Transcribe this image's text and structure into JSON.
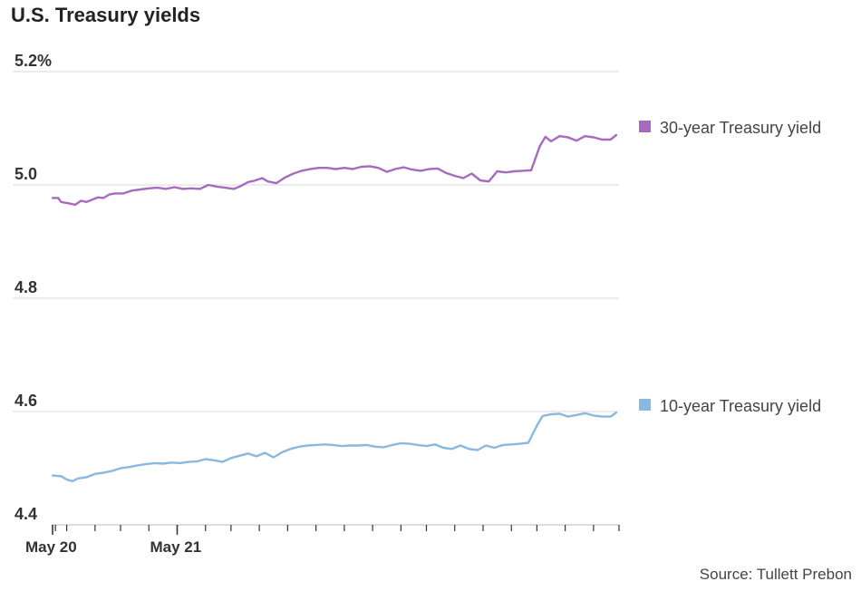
{
  "title": "U.S. Treasury yields",
  "source": "Source: Tullett Prebon",
  "colors": {
    "thirty": "#a66bbe",
    "ten": "#89b8e0",
    "grid": "#d9d9d9",
    "axis": "#333333"
  },
  "chart_data": {
    "type": "line",
    "title": "U.S. Treasury yields",
    "xlabel": "",
    "ylabel": "",
    "ylim": [
      4.4,
      5.2
    ],
    "xlim": [
      0,
      200
    ],
    "yticks": [
      {
        "value": 5.2,
        "label": "5.2%"
      },
      {
        "value": 5.0,
        "label": "5.0"
      },
      {
        "value": 4.8,
        "label": "4.8"
      },
      {
        "value": 4.6,
        "label": "4.6"
      },
      {
        "value": 4.4,
        "label": "4.4"
      }
    ],
    "xticks": [
      {
        "x": 0,
        "label": "May 20"
      },
      {
        "x": 44,
        "label": "May 21"
      }
    ],
    "minor_ticks": [
      0,
      1,
      5,
      15,
      24,
      34,
      44,
      54,
      63,
      73,
      83,
      93,
      103,
      113,
      123,
      132,
      142,
      152,
      162,
      171,
      181,
      191,
      200
    ],
    "series": [
      {
        "name": "30-year Treasury yield",
        "color_key": "thirty",
        "points": [
          [
            0,
            4.977
          ],
          [
            2,
            4.977
          ],
          [
            3,
            4.97
          ],
          [
            6,
            4.967
          ],
          [
            8,
            4.965
          ],
          [
            10,
            4.972
          ],
          [
            12,
            4.97
          ],
          [
            14,
            4.974
          ],
          [
            16,
            4.978
          ],
          [
            18,
            4.977
          ],
          [
            20,
            4.983
          ],
          [
            22,
            4.985
          ],
          [
            25,
            4.985
          ],
          [
            28,
            4.99
          ],
          [
            31,
            4.992
          ],
          [
            34,
            4.994
          ],
          [
            37,
            4.995
          ],
          [
            40,
            4.993
          ],
          [
            43,
            4.996
          ],
          [
            46,
            4.993
          ],
          [
            49,
            4.994
          ],
          [
            52,
            4.993
          ],
          [
            55,
            5.0
          ],
          [
            58,
            4.997
          ],
          [
            61,
            4.995
          ],
          [
            64,
            4.993
          ],
          [
            66,
            4.997
          ],
          [
            69,
            5.005
          ],
          [
            71,
            5.007
          ],
          [
            74,
            5.012
          ],
          [
            76,
            5.006
          ],
          [
            79,
            5.003
          ],
          [
            82,
            5.013
          ],
          [
            85,
            5.02
          ],
          [
            88,
            5.025
          ],
          [
            91,
            5.028
          ],
          [
            94,
            5.03
          ],
          [
            97,
            5.03
          ],
          [
            100,
            5.028
          ],
          [
            103,
            5.03
          ],
          [
            106,
            5.028
          ],
          [
            109,
            5.032
          ],
          [
            112,
            5.033
          ],
          [
            115,
            5.03
          ],
          [
            118,
            5.023
          ],
          [
            121,
            5.028
          ],
          [
            124,
            5.031
          ],
          [
            127,
            5.027
          ],
          [
            130,
            5.025
          ],
          [
            133,
            5.028
          ],
          [
            136,
            5.029
          ],
          [
            139,
            5.021
          ],
          [
            142,
            5.016
          ],
          [
            145,
            5.012
          ],
          [
            148,
            5.02
          ],
          [
            151,
            5.008
          ],
          [
            154,
            5.006
          ],
          [
            157,
            5.024
          ],
          [
            160,
            5.022
          ],
          [
            163,
            5.024
          ],
          [
            166,
            5.025
          ],
          [
            169,
            5.026
          ],
          [
            172,
            5.068
          ],
          [
            174,
            5.085
          ],
          [
            176,
            5.077
          ],
          [
            179,
            5.086
          ],
          [
            182,
            5.084
          ],
          [
            185,
            5.078
          ],
          [
            188,
            5.086
          ],
          [
            191,
            5.084
          ],
          [
            194,
            5.08
          ],
          [
            197,
            5.08
          ],
          [
            199,
            5.088
          ]
        ]
      },
      {
        "name": "10-year Treasury yield",
        "color_key": "ten",
        "points": [
          [
            0,
            4.487
          ],
          [
            3,
            4.486
          ],
          [
            5,
            4.48
          ],
          [
            7,
            4.477
          ],
          [
            9,
            4.482
          ],
          [
            12,
            4.484
          ],
          [
            15,
            4.49
          ],
          [
            18,
            4.492
          ],
          [
            21,
            4.495
          ],
          [
            24,
            4.5
          ],
          [
            27,
            4.502
          ],
          [
            30,
            4.505
          ],
          [
            33,
            4.507
          ],
          [
            36,
            4.509
          ],
          [
            39,
            4.508
          ],
          [
            42,
            4.51
          ],
          [
            45,
            4.509
          ],
          [
            48,
            4.511
          ],
          [
            51,
            4.512
          ],
          [
            54,
            4.516
          ],
          [
            57,
            4.514
          ],
          [
            60,
            4.511
          ],
          [
            63,
            4.518
          ],
          [
            66,
            4.522
          ],
          [
            69,
            4.526
          ],
          [
            72,
            4.521
          ],
          [
            75,
            4.527
          ],
          [
            78,
            4.519
          ],
          [
            81,
            4.528
          ],
          [
            84,
            4.534
          ],
          [
            87,
            4.538
          ],
          [
            90,
            4.54
          ],
          [
            93,
            4.541
          ],
          [
            96,
            4.542
          ],
          [
            99,
            4.541
          ],
          [
            102,
            4.539
          ],
          [
            105,
            4.54
          ],
          [
            108,
            4.54
          ],
          [
            111,
            4.541
          ],
          [
            114,
            4.538
          ],
          [
            117,
            4.537
          ],
          [
            120,
            4.541
          ],
          [
            123,
            4.544
          ],
          [
            126,
            4.543
          ],
          [
            129,
            4.541
          ],
          [
            132,
            4.539
          ],
          [
            135,
            4.542
          ],
          [
            138,
            4.536
          ],
          [
            141,
            4.534
          ],
          [
            144,
            4.54
          ],
          [
            147,
            4.534
          ],
          [
            150,
            4.532
          ],
          [
            153,
            4.54
          ],
          [
            156,
            4.536
          ],
          [
            159,
            4.541
          ],
          [
            162,
            4.542
          ],
          [
            165,
            4.543
          ],
          [
            168,
            4.545
          ],
          [
            171,
            4.575
          ],
          [
            173,
            4.592
          ],
          [
            176,
            4.595
          ],
          [
            179,
            4.596
          ],
          [
            182,
            4.591
          ],
          [
            185,
            4.594
          ],
          [
            188,
            4.597
          ],
          [
            191,
            4.593
          ],
          [
            194,
            4.591
          ],
          [
            197,
            4.591
          ],
          [
            199,
            4.598
          ]
        ]
      }
    ]
  }
}
